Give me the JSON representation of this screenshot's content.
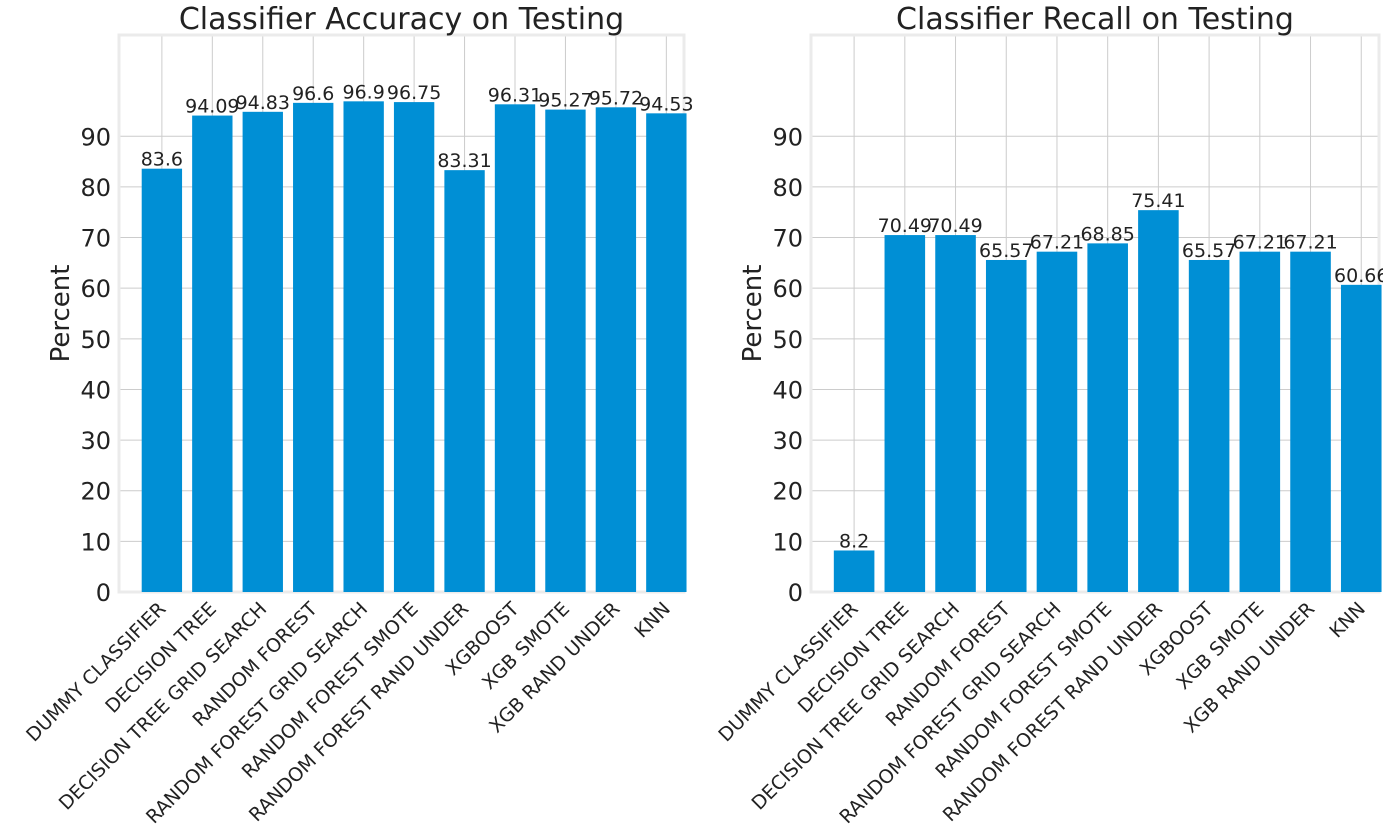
{
  "chart_data": [
    {
      "type": "bar",
      "title": "Classifier Accuracy on Testing",
      "ylabel": "Percent",
      "xlabel": "",
      "ylim": [
        0,
        110
      ],
      "yticks": [
        0,
        10,
        20,
        30,
        40,
        50,
        60,
        70,
        80,
        90
      ],
      "grid": true,
      "bar_color": "#008fd5",
      "categories": [
        "DUMMY CLASSIFIER",
        "DECISION TREE",
        "DECISION TREE GRID SEARCH",
        "RANDOM FOREST",
        "RANDOM FOREST GRID SEARCH",
        "RANDOM FOREST SMOTE",
        "RANDOM FOREST RAND UNDER",
        "XGBOOST",
        "XGB SMOTE",
        "XGB RAND UNDER",
        "KNN"
      ],
      "values": [
        83.6,
        94.09,
        94.83,
        96.6,
        96.9,
        96.75,
        83.31,
        96.31,
        95.27,
        95.72,
        94.53
      ],
      "labels": [
        "83.6",
        "94.09",
        "94.83",
        "96.6",
        "96.9",
        "96.75",
        "83.31",
        "96.31",
        "95.27",
        "95.72",
        "94.53"
      ]
    },
    {
      "type": "bar",
      "title": "Classifier Recall on Testing",
      "ylabel": "Percent",
      "xlabel": "",
      "ylim": [
        0,
        110
      ],
      "yticks": [
        0,
        10,
        20,
        30,
        40,
        50,
        60,
        70,
        80,
        90
      ],
      "grid": true,
      "bar_color": "#008fd5",
      "categories": [
        "DUMMY CLASSIFIER",
        "DECISION TREE",
        "DECISION TREE GRID SEARCH",
        "RANDOM FOREST",
        "RANDOM FOREST GRID SEARCH",
        "RANDOM FOREST SMOTE",
        "RANDOM FOREST RAND UNDER",
        "XGBOOST",
        "XGB SMOTE",
        "XGB RAND UNDER",
        "KNN"
      ],
      "values": [
        8.2,
        70.49,
        70.49,
        65.57,
        67.21,
        68.85,
        75.41,
        65.57,
        67.21,
        67.21,
        60.66
      ],
      "labels": [
        "8.2",
        "70.49",
        "70.49",
        "65.57",
        "67.21",
        "68.85",
        "75.41",
        "65.57",
        "67.21",
        "67.21",
        "60.66"
      ]
    }
  ]
}
